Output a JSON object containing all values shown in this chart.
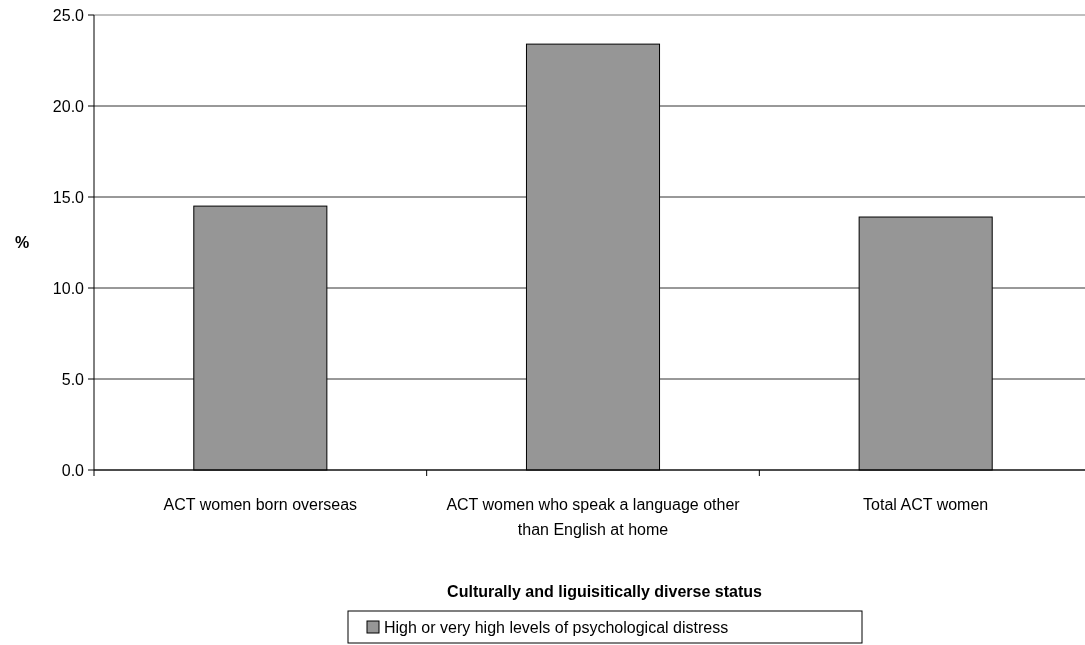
{
  "chart_data": {
    "type": "bar",
    "categories": [
      "ACT women born overseas",
      "ACT women who speak a language other than English at home",
      "Total ACT women"
    ],
    "series": [
      {
        "name": "High or very high levels of psychological distress",
        "color": "#969696",
        "values": [
          14.5,
          23.4,
          13.9
        ]
      }
    ],
    "ylabel": "%",
    "xlabel": "Culturally and liguisitically diverse status",
    "ylim": [
      0,
      25
    ],
    "yticks": [
      {
        "value": 0,
        "label": "0.0"
      },
      {
        "value": 5,
        "label": "5.0"
      },
      {
        "value": 10,
        "label": "10.0"
      },
      {
        "value": 15,
        "label": "15.0"
      },
      {
        "value": 20,
        "label": "20.0"
      },
      {
        "value": 25,
        "label": "25.0"
      }
    ],
    "grid": "y",
    "legend": "bottom"
  }
}
